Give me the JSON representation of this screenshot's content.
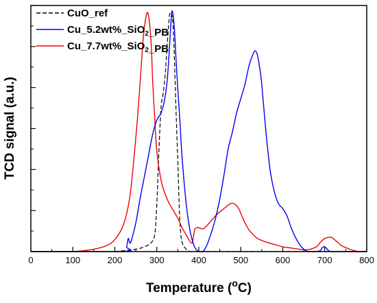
{
  "chart_data": {
    "type": "line",
    "title": "",
    "xlabel_main": "Temperature (",
    "xlabel_sup": "o",
    "xlabel_unit": "C)",
    "ylabel": "TCD signal (a.u.)",
    "xlim": [
      0,
      800
    ],
    "ylim": [
      0,
      1.03
    ],
    "x_ticks": [
      0,
      100,
      200,
      300,
      400,
      500,
      600,
      700,
      800
    ],
    "x_tick_labels": [
      "0",
      "100",
      "200",
      "300",
      "400",
      "500",
      "600",
      "700",
      "800"
    ],
    "y_tick_labels": false,
    "grid": false,
    "legend_position": "top-left",
    "series": [
      {
        "name": "CuO_ref",
        "name_parts": [
          {
            "text": "CuO_ref",
            "sub": false
          }
        ],
        "color": "#000000",
        "dash": "dashed",
        "x": [
          200,
          250,
          270,
          285,
          295,
          300,
          305,
          310,
          315,
          320,
          325,
          330,
          333,
          337,
          340,
          343,
          346,
          350,
          353,
          356,
          360,
          370,
          380,
          400,
          450,
          800
        ],
        "y": [
          0.0,
          0.01,
          0.02,
          0.035,
          0.07,
          0.2,
          0.42,
          0.6,
          0.66,
          0.74,
          0.87,
          0.985,
          1.0,
          0.98,
          0.9,
          0.75,
          0.58,
          0.38,
          0.21,
          0.1,
          0.04,
          0.01,
          0.0,
          0.0,
          0.0,
          0.0
        ]
      },
      {
        "name": "Cu_5.2wt%_SiO2_PB",
        "name_parts": [
          {
            "text": "Cu_5.2wt%_SiO",
            "sub": false
          },
          {
            "text": "2",
            "sub": true
          },
          {
            "text": "_PB",
            "sub": false
          }
        ],
        "color": "#0000ee",
        "dash": "solid",
        "x": [
          0,
          220,
          228,
          232,
          236,
          240,
          250,
          260,
          270,
          280,
          290,
          300,
          310,
          318,
          325,
          330,
          335,
          338,
          342,
          346,
          350,
          355,
          360,
          370,
          380,
          390,
          400,
          410,
          420,
          430,
          440,
          450,
          460,
          470,
          480,
          490,
          500,
          510,
          520,
          530,
          535,
          540,
          545,
          550,
          560,
          570,
          580,
          590,
          600,
          610,
          620,
          630,
          640,
          650,
          660,
          680,
          690,
          695,
          700,
          705,
          710,
          720,
          800
        ],
        "y": [
          0.0,
          0.0,
          0.02,
          0.055,
          0.035,
          0.05,
          0.12,
          0.22,
          0.31,
          0.4,
          0.49,
          0.55,
          0.58,
          0.63,
          0.72,
          0.85,
          0.99,
          1.0,
          0.93,
          0.8,
          0.68,
          0.55,
          0.4,
          0.2,
          0.08,
          0.02,
          0.0,
          0.0,
          0.03,
          0.08,
          0.14,
          0.22,
          0.32,
          0.43,
          0.5,
          0.58,
          0.64,
          0.7,
          0.78,
          0.83,
          0.84,
          0.82,
          0.77,
          0.7,
          0.5,
          0.34,
          0.25,
          0.2,
          0.18,
          0.15,
          0.1,
          0.06,
          0.03,
          0.01,
          0.0,
          0.0,
          0.005,
          0.018,
          0.02,
          0.012,
          0.003,
          0.0,
          0.0
        ]
      },
      {
        "name": "Cu_7.7wt%_SiO2_PB",
        "name_parts": [
          {
            "text": "Cu_7.7wt%_SiO",
            "sub": false
          },
          {
            "text": "2",
            "sub": true
          },
          {
            "text": "_PB",
            "sub": false
          }
        ],
        "color": "#ee0000",
        "dash": "solid",
        "x": [
          0,
          100,
          150,
          180,
          200,
          220,
          235,
          245,
          255,
          262,
          268,
          273,
          277,
          280,
          283,
          287,
          290,
          295,
          300,
          310,
          320,
          330,
          340,
          350,
          360,
          370,
          380,
          385,
          390,
          395,
          400,
          410,
          420,
          440,
          460,
          475,
          485,
          495,
          500,
          510,
          520,
          530,
          540,
          560,
          580,
          600,
          620,
          640,
          660,
          680,
          690,
          700,
          710,
          715,
          720,
          730,
          740,
          760,
          780,
          800
        ],
        "y": [
          0.0,
          0.0,
          0.01,
          0.025,
          0.05,
          0.11,
          0.22,
          0.38,
          0.58,
          0.75,
          0.9,
          0.97,
          1.0,
          0.99,
          0.95,
          0.86,
          0.72,
          0.56,
          0.42,
          0.3,
          0.24,
          0.2,
          0.17,
          0.14,
          0.1,
          0.07,
          0.04,
          0.04,
          0.09,
          0.1,
          0.1,
          0.095,
          0.11,
          0.15,
          0.18,
          0.2,
          0.2,
          0.18,
          0.16,
          0.12,
          0.09,
          0.07,
          0.055,
          0.04,
          0.03,
          0.02,
          0.015,
          0.01,
          0.008,
          0.02,
          0.04,
          0.055,
          0.06,
          0.06,
          0.055,
          0.04,
          0.025,
          0.01,
          0.0,
          0.0
        ]
      }
    ]
  }
}
